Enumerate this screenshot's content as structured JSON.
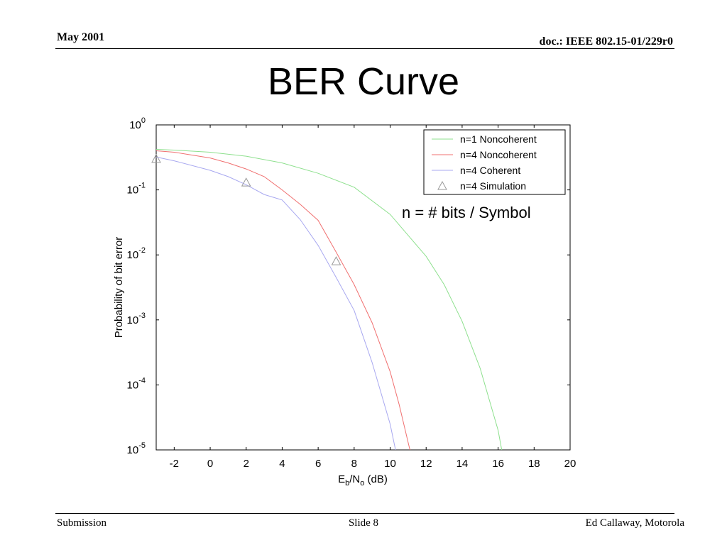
{
  "header": {
    "left": "May 2001",
    "right": "doc.: IEEE 802.15-01/229r0"
  },
  "slide_title": "BER Curve",
  "annotation": "n = # bits / Symbol",
  "footer": {
    "left": "Submission",
    "center": "Slide 8",
    "right": "Ed Callaway, Motorola"
  },
  "colors": {
    "n1_noncoherent": "#8ee08e",
    "n4_noncoherent": "#f07070",
    "n4_coherent": "#a8a8f0",
    "simulation": "#999999"
  },
  "chart_data": {
    "type": "line",
    "title": "",
    "xlabel": {
      "main": "E",
      "sub1": "b",
      "mid": "/N",
      "sub2": "o",
      "tail": " (dB)"
    },
    "ylabel": "Probability of bit error",
    "xlim": [
      -3,
      20
    ],
    "ylim": [
      1e-05,
      1
    ],
    "yscale": "log",
    "xticks": [
      -2,
      0,
      2,
      4,
      6,
      8,
      10,
      12,
      14,
      16,
      18,
      20
    ],
    "yticks": [
      {
        "value": 1,
        "base": "10",
        "exp": "0"
      },
      {
        "value": 0.1,
        "base": "10",
        "exp": "-1"
      },
      {
        "value": 0.01,
        "base": "10",
        "exp": "-2"
      },
      {
        "value": 0.001,
        "base": "10",
        "exp": "-3"
      },
      {
        "value": 0.0001,
        "base": "10",
        "exp": "-4"
      },
      {
        "value": 1e-05,
        "base": "10",
        "exp": "-5"
      }
    ],
    "legend_position": "top-right",
    "series": [
      {
        "name": "n=1 Noncoherent",
        "color": "#8ee08e",
        "style": "line",
        "x": [
          -3,
          -2,
          0,
          2,
          4,
          6,
          8,
          10,
          12,
          13,
          14,
          15,
          16,
          16.2
        ],
        "y": [
          0.42,
          0.41,
          0.38,
          0.33,
          0.26,
          0.18,
          0.11,
          0.042,
          0.0095,
          0.0035,
          0.00095,
          0.00018,
          2e-05,
          1e-05
        ]
      },
      {
        "name": "n=4 Noncoherent",
        "color": "#f07070",
        "style": "line",
        "x": [
          -3,
          -2,
          0,
          1,
          2,
          3,
          4,
          5,
          6,
          7,
          8,
          9,
          10,
          10.5,
          11,
          11.1
        ],
        "y": [
          0.4,
          0.38,
          0.31,
          0.26,
          0.21,
          0.16,
          0.1,
          0.06,
          0.034,
          0.011,
          0.0035,
          0.0009,
          0.00016,
          5e-05,
          1.3e-05,
          1e-05
        ]
      },
      {
        "name": "n=4 Coherent",
        "color": "#a8a8f0",
        "style": "line",
        "x": [
          -3,
          -2,
          0,
          1,
          2,
          3,
          4,
          5,
          6,
          7,
          8,
          9,
          10,
          10.3
        ],
        "y": [
          0.32,
          0.28,
          0.2,
          0.16,
          0.12,
          0.085,
          0.07,
          0.035,
          0.014,
          0.0045,
          0.0014,
          0.00022,
          2.5e-05,
          1e-05
        ]
      },
      {
        "name": "n=4 Simulation",
        "color": "#999999",
        "style": "marker",
        "x": [
          -3,
          2,
          7
        ],
        "y": [
          0.3,
          0.13,
          0.008
        ]
      }
    ]
  }
}
